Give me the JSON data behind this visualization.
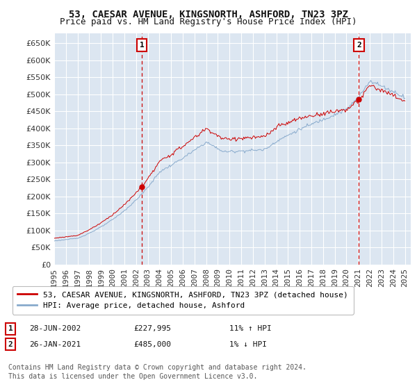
{
  "title": "53, CAESAR AVENUE, KINGSNORTH, ASHFORD, TN23 3PZ",
  "subtitle": "Price paid vs. HM Land Registry's House Price Index (HPI)",
  "ylim": [
    0,
    680000
  ],
  "ytick_vals": [
    0,
    50000,
    100000,
    150000,
    200000,
    250000,
    300000,
    350000,
    400000,
    450000,
    500000,
    550000,
    600000,
    650000
  ],
  "year_start": 1995,
  "year_end": 2025,
  "xtick_years": [
    1995,
    1996,
    1997,
    1998,
    1999,
    2000,
    2001,
    2002,
    2003,
    2004,
    2005,
    2006,
    2007,
    2008,
    2009,
    2010,
    2011,
    2012,
    2013,
    2014,
    2015,
    2016,
    2017,
    2018,
    2019,
    2020,
    2021,
    2022,
    2023,
    2024,
    2025
  ],
  "bg_color": "#dce6f1",
  "fig_bg_color": "#ffffff",
  "grid_color": "#ffffff",
  "line_color_red": "#cc0000",
  "line_color_blue": "#88aacc",
  "marker1_x": 2002.49,
  "marker1_y": 227995,
  "marker1_label": "1",
  "marker2_x": 2021.07,
  "marker2_y": 485000,
  "marker2_label": "2",
  "legend_label_red": "53, CAESAR AVENUE, KINGSNORTH, ASHFORD, TN23 3PZ (detached house)",
  "legend_label_blue": "HPI: Average price, detached house, Ashford",
  "ann1_date": "28-JUN-2002",
  "ann1_price": "£227,995",
  "ann1_hpi": "11% ↑ HPI",
  "ann2_date": "26-JAN-2021",
  "ann2_price": "£485,000",
  "ann2_hpi": "1% ↓ HPI",
  "footer": "Contains HM Land Registry data © Crown copyright and database right 2024.\nThis data is licensed under the Open Government Licence v3.0.",
  "title_fontsize": 10,
  "subtitle_fontsize": 9,
  "tick_fontsize": 8,
  "legend_fontsize": 8,
  "ann_fontsize": 8,
  "footer_fontsize": 7
}
